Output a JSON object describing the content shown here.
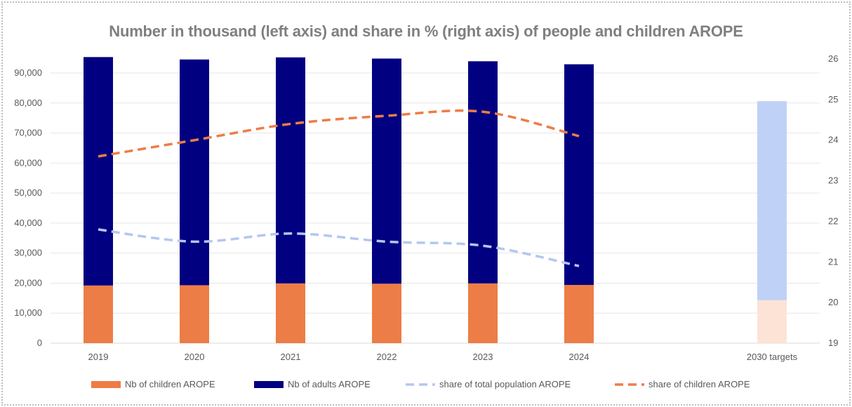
{
  "chart_data": {
    "type": "bar",
    "title": "Number in thousand (left axis) and share in % (right axis) of people and children AROPE",
    "categories": [
      "2019",
      "2020",
      "2021",
      "2022",
      "2023",
      "2024",
      "2030 targets"
    ],
    "y_left": {
      "min": 0,
      "max": 90000,
      "ticks": [
        "0",
        "10,000",
        "20,000",
        "30,000",
        "40,000",
        "50,000",
        "60,000",
        "70,000",
        "80,000",
        "90,000"
      ]
    },
    "y_right": {
      "min": 19,
      "max": 26,
      "ticks": [
        "19",
        "20",
        "21",
        "22",
        "23",
        "24",
        "25",
        "26"
      ]
    },
    "series": [
      {
        "name": "Nb of children AROPE",
        "kind": "bar",
        "axis": "left",
        "color": "#ED7D46",
        "values": [
          19200,
          19300,
          19900,
          19800,
          19900,
          19400,
          null
        ]
      },
      {
        "name": "Nb of adults AROPE",
        "kind": "bar",
        "axis": "left",
        "color": "#000080",
        "values": [
          76100,
          75200,
          75300,
          75000,
          74000,
          73500,
          null
        ]
      },
      {
        "name": "share of total population AROPE",
        "kind": "line",
        "axis": "right",
        "color": "#B4C7F0",
        "values": [
          21.8,
          21.5,
          21.7,
          21.5,
          21.4,
          20.9,
          null
        ]
      },
      {
        "name": "share of children AROPE",
        "kind": "line",
        "axis": "right",
        "color": "#ED7D46",
        "values": [
          23.6,
          24.0,
          24.4,
          24.6,
          24.7,
          24.1,
          null
        ]
      }
    ],
    "targets": [
      {
        "name": "2030 target children",
        "color": "#FCE3D6",
        "value": 14300
      },
      {
        "name": "2030 target adults",
        "color": "#C0D1F7",
        "value": 66300
      }
    ],
    "legend_position": "bottom",
    "grid": true
  }
}
